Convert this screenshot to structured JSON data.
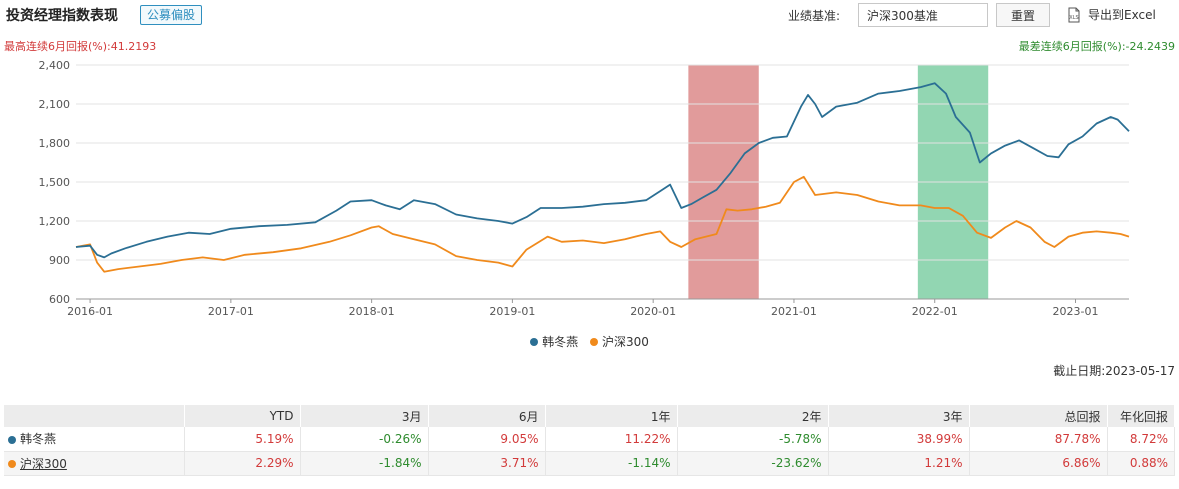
{
  "header": {
    "title": "投资经理指数表现",
    "tag": "公募偏股",
    "benchmark_label": "业绩基准:",
    "benchmark_value": "沪深300基准",
    "reset_label": "重置",
    "export_label": "导出到Excel",
    "export_icon_text": "XLS"
  },
  "returns": {
    "max_label": "最高连续6月回报(%):41.2193",
    "min_label": "最差连续6月回报(%):-24.2439"
  },
  "colors": {
    "manager": "#2b6f94",
    "benchmark": "#f08a1c",
    "max_band": "#dc8a8a",
    "min_band": "#7fcfa4",
    "positive": "#d23a3a",
    "negative": "#2e8b2e"
  },
  "chart_data": {
    "type": "line",
    "title": "",
    "xlabel": "",
    "ylabel": "",
    "ylim": [
      600,
      2400
    ],
    "yticks": [
      600,
      900,
      1200,
      1500,
      1800,
      2100,
      2400
    ],
    "xlim": [
      2015.9,
      2023.38
    ],
    "xticks": [
      {
        "label": "2016-01",
        "value": 2016.0
      },
      {
        "label": "2017-01",
        "value": 2017.0
      },
      {
        "label": "2018-01",
        "value": 2018.0
      },
      {
        "label": "2019-01",
        "value": 2019.0
      },
      {
        "label": "2020-01",
        "value": 2020.0
      },
      {
        "label": "2021-01",
        "value": 2021.0
      },
      {
        "label": "2022-01",
        "value": 2022.0
      },
      {
        "label": "2023-01",
        "value": 2023.0
      }
    ],
    "bands": [
      {
        "name": "最高连续6月",
        "from": 2020.25,
        "to": 2020.75,
        "color": "#dc8a8a"
      },
      {
        "name": "最差连续6月",
        "from": 2021.88,
        "to": 2022.38,
        "color": "#7fcfa4"
      }
    ],
    "series": [
      {
        "name": "韩冬燕",
        "color": "#2b6f94",
        "points": [
          [
            2015.9,
            1000
          ],
          [
            2016.0,
            1010
          ],
          [
            2016.05,
            940
          ],
          [
            2016.1,
            920
          ],
          [
            2016.15,
            950
          ],
          [
            2016.25,
            990
          ],
          [
            2016.4,
            1040
          ],
          [
            2016.55,
            1080
          ],
          [
            2016.7,
            1110
          ],
          [
            2016.85,
            1100
          ],
          [
            2017.0,
            1140
          ],
          [
            2017.2,
            1160
          ],
          [
            2017.4,
            1170
          ],
          [
            2017.6,
            1190
          ],
          [
            2017.75,
            1280
          ],
          [
            2017.85,
            1350
          ],
          [
            2018.0,
            1360
          ],
          [
            2018.1,
            1320
          ],
          [
            2018.2,
            1290
          ],
          [
            2018.3,
            1360
          ],
          [
            2018.45,
            1330
          ],
          [
            2018.6,
            1250
          ],
          [
            2018.75,
            1220
          ],
          [
            2018.9,
            1200
          ],
          [
            2019.0,
            1180
          ],
          [
            2019.1,
            1230
          ],
          [
            2019.2,
            1300
          ],
          [
            2019.35,
            1300
          ],
          [
            2019.5,
            1310
          ],
          [
            2019.65,
            1330
          ],
          [
            2019.8,
            1340
          ],
          [
            2019.95,
            1360
          ],
          [
            2020.05,
            1430
          ],
          [
            2020.12,
            1480
          ],
          [
            2020.2,
            1300
          ],
          [
            2020.27,
            1330
          ],
          [
            2020.35,
            1380
          ],
          [
            2020.45,
            1440
          ],
          [
            2020.55,
            1570
          ],
          [
            2020.65,
            1720
          ],
          [
            2020.75,
            1800
          ],
          [
            2020.85,
            1840
          ],
          [
            2020.95,
            1850
          ],
          [
            2021.05,
            2080
          ],
          [
            2021.1,
            2170
          ],
          [
            2021.15,
            2100
          ],
          [
            2021.2,
            2000
          ],
          [
            2021.3,
            2080
          ],
          [
            2021.45,
            2110
          ],
          [
            2021.6,
            2180
          ],
          [
            2021.75,
            2200
          ],
          [
            2021.9,
            2230
          ],
          [
            2022.0,
            2260
          ],
          [
            2022.08,
            2180
          ],
          [
            2022.15,
            2000
          ],
          [
            2022.25,
            1880
          ],
          [
            2022.32,
            1650
          ],
          [
            2022.4,
            1720
          ],
          [
            2022.5,
            1780
          ],
          [
            2022.6,
            1820
          ],
          [
            2022.7,
            1760
          ],
          [
            2022.8,
            1700
          ],
          [
            2022.88,
            1690
          ],
          [
            2022.95,
            1790
          ],
          [
            2023.05,
            1850
          ],
          [
            2023.15,
            1950
          ],
          [
            2023.25,
            2000
          ],
          [
            2023.3,
            1980
          ],
          [
            2023.38,
            1890
          ]
        ]
      },
      {
        "name": "沪深300",
        "color": "#f08a1c",
        "points": [
          [
            2015.9,
            1000
          ],
          [
            2016.0,
            1020
          ],
          [
            2016.05,
            880
          ],
          [
            2016.1,
            810
          ],
          [
            2016.2,
            830
          ],
          [
            2016.35,
            850
          ],
          [
            2016.5,
            870
          ],
          [
            2016.65,
            900
          ],
          [
            2016.8,
            920
          ],
          [
            2016.95,
            900
          ],
          [
            2017.1,
            940
          ],
          [
            2017.3,
            960
          ],
          [
            2017.5,
            990
          ],
          [
            2017.7,
            1040
          ],
          [
            2017.85,
            1090
          ],
          [
            2018.0,
            1150
          ],
          [
            2018.05,
            1160
          ],
          [
            2018.15,
            1100
          ],
          [
            2018.3,
            1060
          ],
          [
            2018.45,
            1020
          ],
          [
            2018.6,
            930
          ],
          [
            2018.75,
            900
          ],
          [
            2018.9,
            880
          ],
          [
            2019.0,
            850
          ],
          [
            2019.1,
            980
          ],
          [
            2019.25,
            1080
          ],
          [
            2019.35,
            1040
          ],
          [
            2019.5,
            1050
          ],
          [
            2019.65,
            1030
          ],
          [
            2019.8,
            1060
          ],
          [
            2019.95,
            1100
          ],
          [
            2020.05,
            1120
          ],
          [
            2020.12,
            1040
          ],
          [
            2020.2,
            1000
          ],
          [
            2020.3,
            1060
          ],
          [
            2020.45,
            1100
          ],
          [
            2020.52,
            1290
          ],
          [
            2020.6,
            1280
          ],
          [
            2020.7,
            1290
          ],
          [
            2020.8,
            1310
          ],
          [
            2020.9,
            1340
          ],
          [
            2021.0,
            1500
          ],
          [
            2021.07,
            1540
          ],
          [
            2021.15,
            1400
          ],
          [
            2021.3,
            1420
          ],
          [
            2021.45,
            1400
          ],
          [
            2021.6,
            1350
          ],
          [
            2021.75,
            1320
          ],
          [
            2021.9,
            1320
          ],
          [
            2022.0,
            1300
          ],
          [
            2022.1,
            1300
          ],
          [
            2022.2,
            1240
          ],
          [
            2022.3,
            1110
          ],
          [
            2022.4,
            1070
          ],
          [
            2022.5,
            1150
          ],
          [
            2022.58,
            1200
          ],
          [
            2022.68,
            1150
          ],
          [
            2022.78,
            1040
          ],
          [
            2022.85,
            1000
          ],
          [
            2022.95,
            1080
          ],
          [
            2023.05,
            1110
          ],
          [
            2023.15,
            1120
          ],
          [
            2023.25,
            1110
          ],
          [
            2023.32,
            1100
          ],
          [
            2023.38,
            1080
          ]
        ]
      }
    ],
    "legend": [
      "韩冬燕",
      "沪深300"
    ]
  },
  "legend": {
    "manager": "韩冬燕",
    "benchmark": "沪深300"
  },
  "cutoff": "截止日期:2023-05-17",
  "table": {
    "headers": [
      "",
      "YTD",
      "3月",
      "6月",
      "1年",
      "2年",
      "3年",
      "总回报",
      "年化回报"
    ],
    "rows": [
      {
        "name": "韩冬燕",
        "values": [
          "5.19%",
          "-0.26%",
          "9.05%",
          "11.22%",
          "-5.78%",
          "38.99%",
          "87.78%",
          "8.72%"
        ],
        "signs": [
          "pos",
          "neg",
          "pos",
          "pos",
          "neg",
          "pos",
          "pos",
          "pos"
        ]
      },
      {
        "name": "沪深300",
        "values": [
          "2.29%",
          "-1.84%",
          "3.71%",
          "-1.14%",
          "-23.62%",
          "1.21%",
          "6.86%",
          "0.88%"
        ],
        "signs": [
          "pos",
          "neg",
          "pos",
          "neg",
          "neg",
          "pos",
          "pos",
          "pos"
        ]
      }
    ]
  }
}
